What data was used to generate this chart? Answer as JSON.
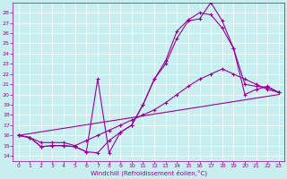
{
  "xlabel": "Windchill (Refroidissement éolien,°C)",
  "bg_color": "#c8eef0",
  "line_color": "#990099",
  "xlim": [
    -0.5,
    23.5
  ],
  "ylim": [
    13.5,
    29
  ],
  "xticks": [
    0,
    1,
    2,
    3,
    4,
    5,
    6,
    7,
    8,
    9,
    10,
    11,
    12,
    13,
    14,
    15,
    16,
    17,
    18,
    19,
    20,
    21,
    22,
    23
  ],
  "yticks": [
    14,
    15,
    16,
    17,
    18,
    19,
    20,
    21,
    22,
    23,
    24,
    25,
    26,
    27,
    28
  ],
  "lines": [
    {
      "x": [
        0,
        1,
        2,
        3,
        4,
        5,
        6,
        7,
        8,
        9,
        10,
        11,
        12,
        13,
        14,
        15,
        16,
        17,
        18,
        19,
        20,
        21,
        22,
        23
      ],
      "y": [
        16.0,
        15.8,
        14.9,
        15.0,
        15.0,
        14.9,
        14.4,
        21.5,
        14.3,
        16.3,
        17.0,
        19.0,
        21.5,
        23.0,
        25.5,
        27.2,
        27.4,
        29.0,
        27.2,
        24.5,
        20.0,
        20.5,
        20.8,
        20.2
      ]
    },
    {
      "x": [
        0,
        1,
        2,
        3,
        4,
        5,
        6,
        7,
        8,
        9,
        10,
        11,
        12,
        13,
        14,
        15,
        16,
        17,
        18,
        19,
        20,
        21,
        22,
        23
      ],
      "y": [
        16.0,
        15.8,
        14.9,
        15.0,
        15.0,
        14.9,
        14.4,
        14.3,
        15.5,
        16.3,
        17.0,
        19.0,
        21.5,
        23.3,
        26.2,
        27.3,
        28.0,
        27.8,
        26.5,
        24.5,
        21.0,
        20.8,
        20.7,
        20.2
      ]
    },
    {
      "x": [
        0,
        1,
        2,
        3,
        4,
        5,
        6,
        7,
        8,
        9,
        10,
        11,
        12,
        13,
        14,
        15,
        16,
        17,
        18,
        19,
        20,
        21,
        22,
        23
      ],
      "y": [
        16.0,
        15.8,
        15.3,
        15.3,
        15.3,
        15.0,
        15.5,
        16.0,
        16.5,
        17.0,
        17.5,
        18.0,
        18.5,
        19.2,
        20.0,
        20.8,
        21.5,
        22.0,
        22.5,
        22.0,
        21.5,
        21.0,
        20.5,
        20.2
      ]
    },
    {
      "x": [
        0,
        23
      ],
      "y": [
        16.0,
        20.0
      ]
    }
  ]
}
